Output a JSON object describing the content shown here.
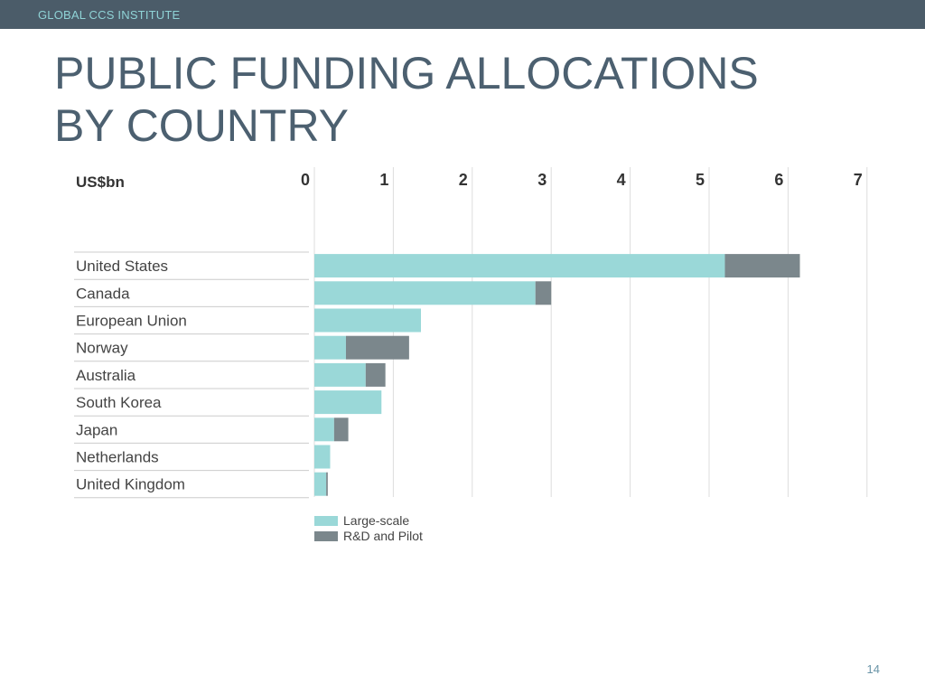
{
  "header": {
    "org_name": "GLOBAL CCS INSTITUTE"
  },
  "slide": {
    "title_line1": "PUBLIC FUNDING ALLOCATIONS",
    "title_line2": "BY COUNTRY",
    "page_number": "14"
  },
  "colors": {
    "header_bg": "#4b5c69",
    "title": "#4c6070",
    "large_scale": "#9ad8d8",
    "rd_pilot": "#7b878c"
  },
  "chart_data": {
    "type": "bar",
    "orientation": "horizontal",
    "stacked": true,
    "unit_label": "US$bn",
    "categories": [
      "United States",
      "Canada",
      "European Union",
      "Norway",
      "Australia",
      "South Korea",
      "Japan",
      "Netherlands",
      "United Kingdom"
    ],
    "series": [
      {
        "name": "Large-scale",
        "color": "#9ad8d8",
        "values": [
          5.2,
          2.8,
          1.35,
          0.4,
          0.65,
          0.85,
          0.25,
          0.2,
          0.15
        ]
      },
      {
        "name": "R&D and Pilot",
        "color": "#7b878c",
        "values": [
          0.95,
          0.2,
          0,
          0.8,
          0.25,
          0,
          0.18,
          0,
          0.02
        ]
      }
    ],
    "xticks": [
      "0",
      "1",
      "2",
      "3",
      "4",
      "5",
      "6",
      "7"
    ],
    "xlim": [
      0,
      7
    ],
    "grid": true,
    "legend_position": "bottom-left"
  }
}
